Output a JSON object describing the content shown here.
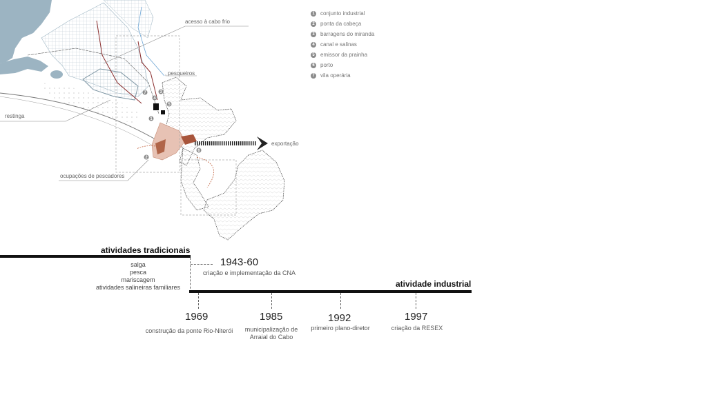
{
  "map": {
    "labels": {
      "acesso": "acesso à cabo frio",
      "pesqueiros": "pesqueiros",
      "restinga": "restinga",
      "ocupacoes": "ocupações de pescadores",
      "exportacao": "exportação"
    },
    "markers": [
      "1",
      "2",
      "3",
      "4",
      "5",
      "6",
      "7"
    ]
  },
  "legend": [
    {
      "num": "1",
      "label": "conjunto industrial"
    },
    {
      "num": "2",
      "label": "ponta da cabeça"
    },
    {
      "num": "3",
      "label": "barragens do miranda"
    },
    {
      "num": "4",
      "label": "canal e salinas"
    },
    {
      "num": "5",
      "label": "emissor da prainha"
    },
    {
      "num": "6",
      "label": "porto"
    },
    {
      "num": "7",
      "label": "vila operária"
    }
  ],
  "timeline": {
    "traditional_title": "atividades tradicionais",
    "traditional_items": [
      "salga",
      "pesca",
      "mariscagem",
      "atividades salineiras familiares"
    ],
    "industrial_title": "atividade industrial",
    "cna_year": "1943-60",
    "cna_desc": "criação e implementação da CNA",
    "events": [
      {
        "year": "1969",
        "desc": "construção da ponte Rio-Niterói"
      },
      {
        "year": "1985",
        "desc": "municipalização de Arraial do Cabo"
      },
      {
        "year": "1992",
        "desc": "primeiro plano-diretor"
      },
      {
        "year": "1997",
        "desc": "criação da RESEX"
      }
    ]
  }
}
